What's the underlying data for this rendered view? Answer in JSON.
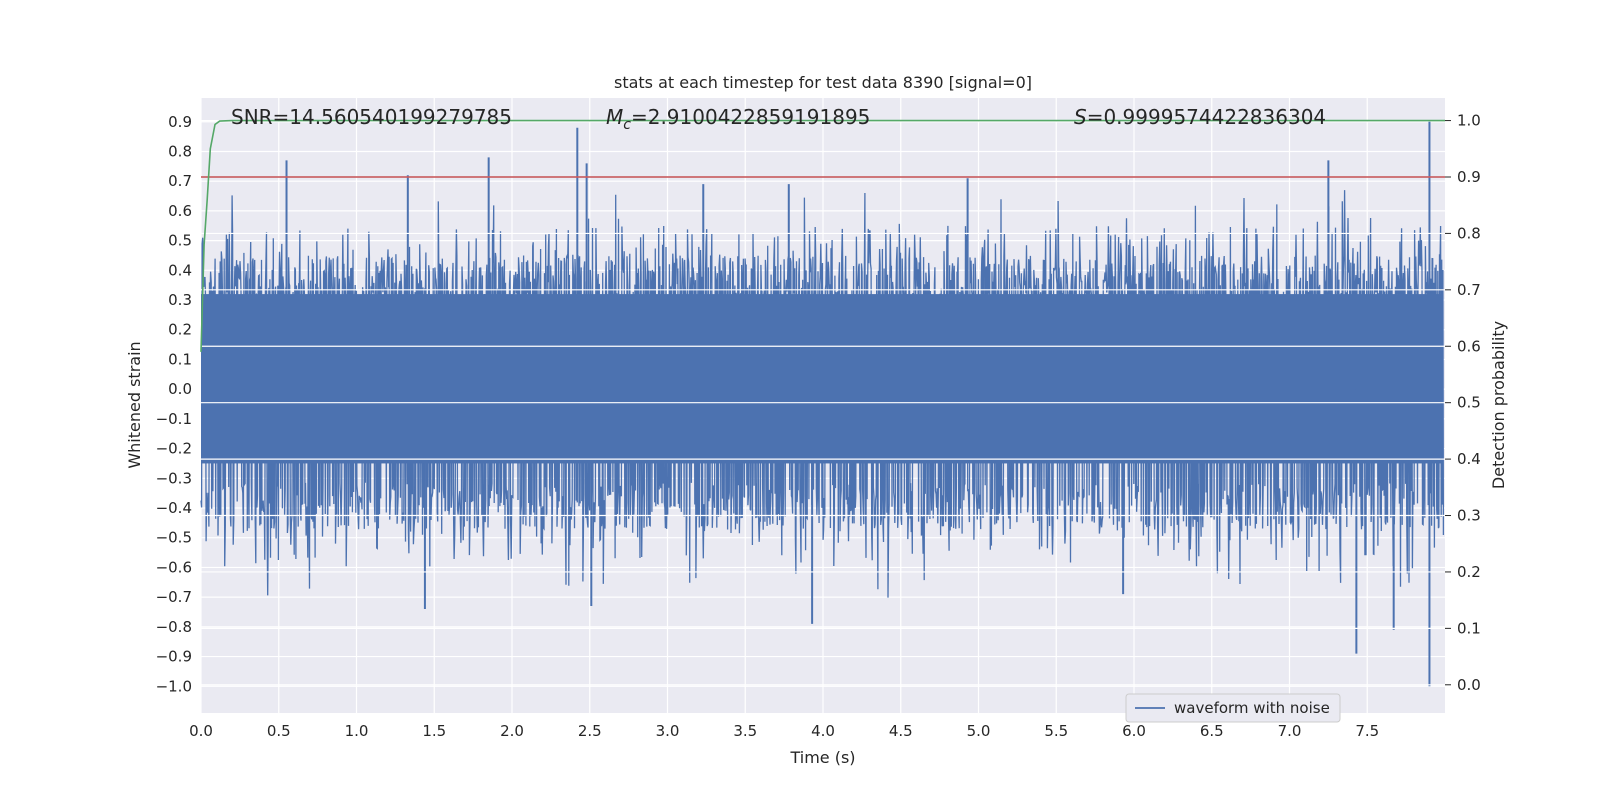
{
  "chart_data": {
    "type": "line",
    "title": "stats at each timestep for test data 8390 [signal=0]",
    "xlabel": "Time (s)",
    "ylabel_left": "Whitened strain",
    "ylabel_right": "Detection probability",
    "xlim": [
      0.0,
      8.0
    ],
    "ylim_left": [
      -1.09,
      0.98
    ],
    "ylim_right": [
      -0.05,
      1.04
    ],
    "x_ticks": [
      "0.0",
      "0.5",
      "1.0",
      "1.5",
      "2.0",
      "2.5",
      "3.0",
      "3.5",
      "4.0",
      "4.5",
      "5.0",
      "5.5",
      "6.0",
      "6.5",
      "7.0",
      "7.5"
    ],
    "x_tick_values": [
      0.0,
      0.5,
      1.0,
      1.5,
      2.0,
      2.5,
      3.0,
      3.5,
      4.0,
      4.5,
      5.0,
      5.5,
      6.0,
      6.5,
      7.0,
      7.5
    ],
    "y_left_ticks": [
      "0.9",
      "0.8",
      "0.7",
      "0.6",
      "0.5",
      "0.4",
      "0.3",
      "0.2",
      "0.1",
      "0.0",
      "−0.1",
      "−0.2",
      "−0.3",
      "−0.4",
      "−0.5",
      "−0.6",
      "−0.7",
      "−0.8",
      "−0.9",
      "−1.0"
    ],
    "y_left_tick_values": [
      0.9,
      0.8,
      0.7,
      0.6,
      0.5,
      0.4,
      0.3,
      0.2,
      0.1,
      0.0,
      -0.1,
      -0.2,
      -0.3,
      -0.4,
      -0.5,
      -0.6,
      -0.7,
      -0.8,
      -0.9,
      -1.0
    ],
    "y_right_ticks": [
      "1.0",
      "0.9",
      "0.8",
      "0.7",
      "0.6",
      "0.5",
      "0.4",
      "0.3",
      "0.2",
      "0.1",
      "0.0"
    ],
    "y_right_tick_values": [
      1.0,
      0.9,
      0.8,
      0.7,
      0.6,
      0.5,
      0.4,
      0.3,
      0.2,
      0.1,
      0.0
    ],
    "annotations": {
      "snr": "SNR=14.560540199279785",
      "mc_symbol": "M",
      "mc_sub": "c",
      "mc_value": "=2.9100422859191895",
      "s_symbol": "S",
      "s_value": "=0.9999574422836304"
    },
    "series": [
      {
        "name": "waveform with noise",
        "axis": "left",
        "color": "#4c72b0",
        "style": "noise",
        "core_band": [
          -0.25,
          0.32
        ],
        "peaks_up": [
          {
            "x": 0.55,
            "y": 0.77
          },
          {
            "x": 1.33,
            "y": 0.72
          },
          {
            "x": 1.85,
            "y": 0.78
          },
          {
            "x": 2.42,
            "y": 0.88
          },
          {
            "x": 2.48,
            "y": 0.76
          },
          {
            "x": 3.23,
            "y": 0.69
          },
          {
            "x": 3.78,
            "y": 0.69
          },
          {
            "x": 4.93,
            "y": 0.71
          },
          {
            "x": 7.25,
            "y": 0.77
          },
          {
            "x": 7.9,
            "y": 0.9
          }
        ],
        "peaks_down": [
          {
            "x": 1.44,
            "y": -0.74
          },
          {
            "x": 2.51,
            "y": -0.73
          },
          {
            "x": 3.93,
            "y": -0.79
          },
          {
            "x": 5.93,
            "y": -0.69
          },
          {
            "x": 7.43,
            "y": -0.89
          },
          {
            "x": 7.67,
            "y": -0.81
          },
          {
            "x": 7.9,
            "y": -1.0
          }
        ]
      },
      {
        "name": "detection probability",
        "axis": "right",
        "color": "#55a868",
        "x": [
          0.0,
          0.02,
          0.04,
          0.06,
          0.09,
          0.12,
          0.2,
          8.0
        ],
        "y": [
          0.59,
          0.78,
          0.86,
          0.95,
          0.993,
          0.999,
          1.0,
          1.0
        ]
      },
      {
        "name": "threshold",
        "axis": "right",
        "color": "#c44e52",
        "x": [
          0.0,
          8.0
        ],
        "y": [
          0.9,
          0.9
        ]
      }
    ],
    "legend": {
      "position": "lower right",
      "entries": [
        "waveform with noise"
      ]
    }
  }
}
